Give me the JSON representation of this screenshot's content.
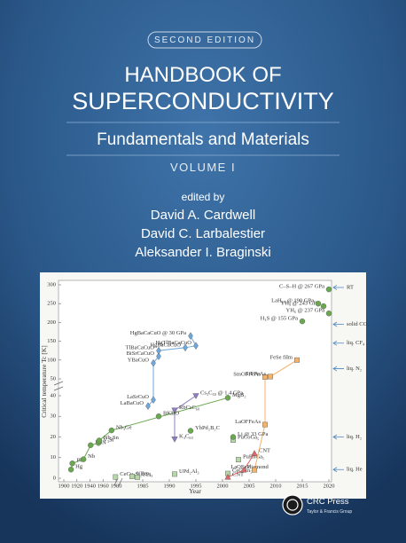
{
  "cover": {
    "edition": "SECOND EDITION",
    "title": [
      "HANDBOOK OF",
      "SUPERCONDUCTIVITY"
    ],
    "subtitle": "Fundamentals and Materials",
    "volume": "VOLUME I",
    "edited_by": "edited by",
    "editors": [
      "David A. Cardwell",
      "David C. Larbalestier",
      "Aleksander I. Braginski"
    ],
    "publisher": "CRC Press",
    "publisher_group": "Taylor & Francis Group"
  },
  "chart_data": {
    "type": "scatter",
    "x_label": "Year",
    "y_label": "Critical temperature Tc [K]",
    "x_segments": [
      [
        1900,
        1980
      ],
      [
        1980,
        2020
      ]
    ],
    "y_segments": [
      [
        0,
        40
      ],
      [
        50,
        300
      ]
    ],
    "xticks": [
      1900,
      1920,
      1940,
      1960,
      1980,
      1985,
      1990,
      1995,
      2000,
      2005,
      2010,
      2015,
      2020
    ],
    "yticks": [
      0,
      10,
      20,
      30,
      40,
      50,
      100,
      150,
      200,
      250,
      300
    ],
    "series": [
      {
        "color": "#6aa84f",
        "marker": "circle",
        "connect": true,
        "points": [
          {
            "label": "Hg",
            "x": 1911,
            "y": 4.2
          },
          {
            "label": "Pb",
            "x": 1913,
            "y": 7.2
          },
          {
            "label": "Nb",
            "x": 1930,
            "y": 9.2
          },
          {
            "label": "NbN",
            "x": 1941,
            "y": 16
          },
          {
            "label": "V₃Si",
            "x": 1953,
            "y": 17.1
          },
          {
            "label": "Nb₃Sn",
            "x": 1954,
            "y": 18.3
          },
          {
            "label": "Nb₃Ge",
            "x": 1973,
            "y": 23.2
          },
          {
            "label": "MgB₂",
            "x": 2001,
            "y": 39
          }
        ]
      },
      {
        "color": "#6fa8dc",
        "marker": "diamond",
        "connect": true,
        "points": [
          {
            "label": "LaBaCuO",
            "x": 1986,
            "y": 35
          },
          {
            "label": "LaSrCuO",
            "x": 1987,
            "y": 38
          },
          {
            "label": "YBaCuO",
            "x": 1987,
            "y": 92
          },
          {
            "label": "BiSrCaCuO",
            "x": 1988,
            "y": 110
          },
          {
            "label": "TlBaCaCuO",
            "x": 1988,
            "y": 125
          },
          {
            "label": "HgBaCaCuO",
            "x": 1993,
            "y": 133
          },
          {
            "label": "HgTlBaCaCuO",
            "x": 1995,
            "y": 138
          },
          {
            "label": "HgBaCaCuO @ 30 GPa",
            "x": 1994,
            "y": 164
          }
        ]
      },
      {
        "color": "#8e7cc3",
        "marker": "tri-down",
        "connect": true,
        "points": [
          {
            "label": "K₃C₆₀",
            "x": 1991,
            "y": 19
          },
          {
            "label": "RbCsC₆₀",
            "x": 1991,
            "y": 33
          },
          {
            "label": "Cs₃C₆₀ @ 1.4 GPa",
            "x": 1995,
            "y": 40
          }
        ]
      },
      {
        "color": "#b6d7a8",
        "marker": "square",
        "connect": false,
        "points": [
          {
            "label": "CeCu₂Si₂",
            "x": 1979,
            "y": 0.6
          },
          {
            "label": "UBe₁₃",
            "x": 1983,
            "y": 0.9
          },
          {
            "label": "UPt₃",
            "x": 1984,
            "y": 0.5
          },
          {
            "label": "UPd₂Al₃",
            "x": 1991,
            "y": 2
          },
          {
            "label": "CeCoIn₅",
            "x": 2001,
            "y": 2.3
          },
          {
            "label": "PuRhGa₅",
            "x": 2003,
            "y": 9
          },
          {
            "label": "PuCoGa₅",
            "x": 2002,
            "y": 18.5
          }
        ]
      },
      {
        "color": "#e06666",
        "marker": "tri-up",
        "connect": true,
        "points": [
          {
            "label": "CNT",
            "x": 2001,
            "y": 0.5
          },
          {
            "label": "diamond",
            "x": 2004,
            "y": 4
          },
          {
            "label": "CNT",
            "x": 2006,
            "y": 12
          }
        ]
      },
      {
        "color": "#f6b26b",
        "marker": "square",
        "connect": true,
        "points": [
          {
            "label": "LaOFeP",
            "x": 2006,
            "y": 4
          },
          {
            "label": "LaOFFeAs",
            "x": 2008,
            "y": 26
          },
          {
            "label": "SmOFFeAs",
            "x": 2008,
            "y": 55
          },
          {
            "label": "SrFFeAs",
            "x": 2009,
            "y": 56
          },
          {
            "label": "FeSe film",
            "x": 2014,
            "y": 100
          }
        ]
      },
      {
        "color": "#6aa84f",
        "marker": "circle",
        "connect": false,
        "points": [
          {
            "label": "H₃S @ 155 GPa",
            "x": 2015,
            "y": 203
          },
          {
            "label": "YH₆ @ 237 GPa",
            "x": 2020,
            "y": 224
          },
          {
            "label": "YH₉ @ 243 GPa",
            "x": 2019,
            "y": 243
          },
          {
            "label": "LaH₁₀ @ 190 GPa",
            "x": 2018,
            "y": 250
          },
          {
            "label": "C–S–H @ 267 GPa",
            "x": 2020,
            "y": 288
          }
        ]
      },
      {
        "color": "#6aa84f",
        "marker": "circle",
        "connect": false,
        "points": [
          {
            "label": "BKBO",
            "x": 1988,
            "y": 30
          },
          {
            "label": "YbPd₂B₂C",
            "x": 1994,
            "y": 23
          },
          {
            "label": "Li @ 33 GPa",
            "x": 2002,
            "y": 20
          }
        ]
      }
    ],
    "reference_lines": [
      {
        "label": "RT",
        "value": 293
      },
      {
        "label": "solid CO₂",
        "value": 195
      },
      {
        "label": "liq. CF₄",
        "value": 145
      },
      {
        "label": "liq. N₂",
        "value": 77
      },
      {
        "label": "liq. H₂",
        "value": 20
      },
      {
        "label": "liq. He",
        "value": 4.2
      }
    ]
  }
}
